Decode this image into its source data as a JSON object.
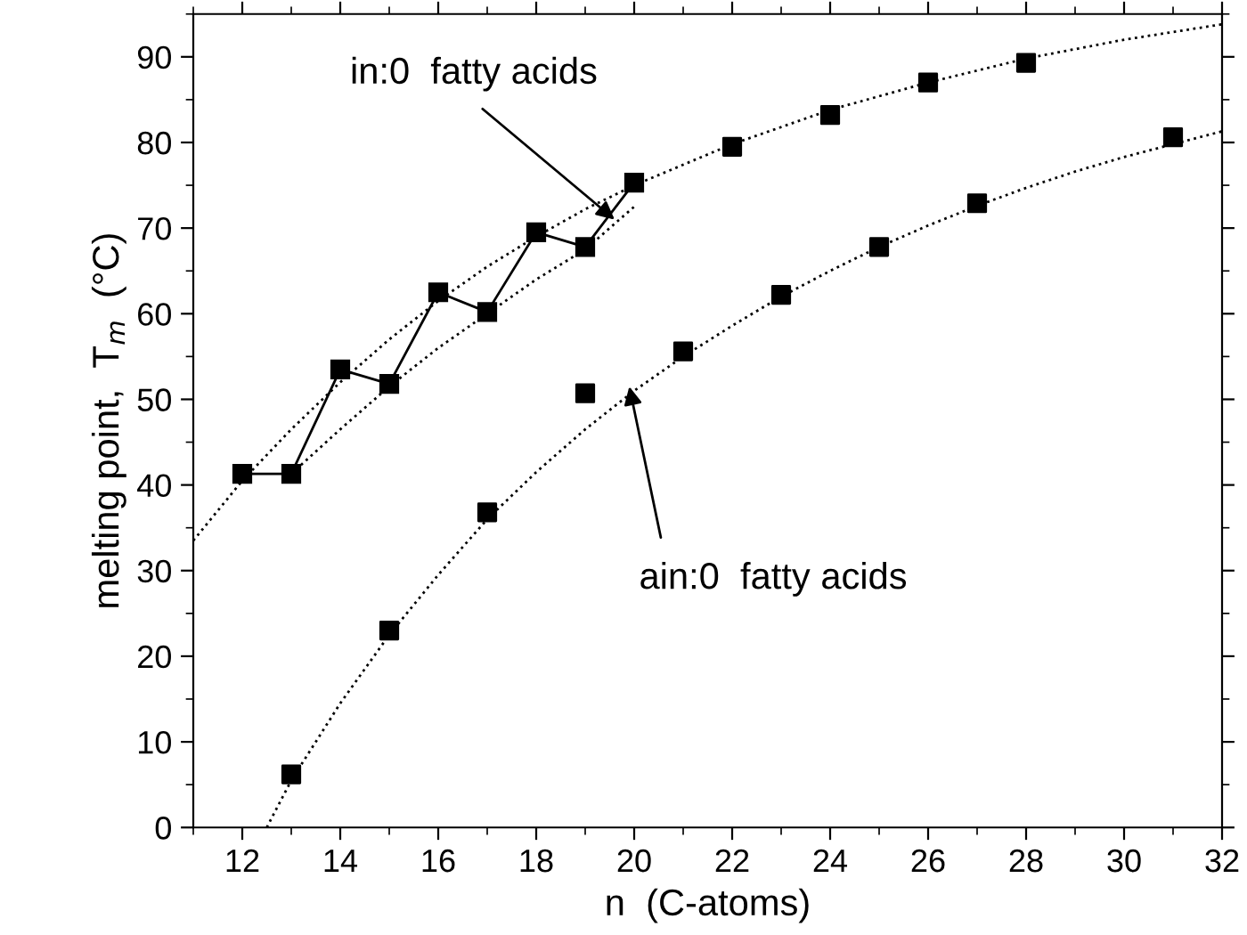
{
  "chart_data": {
    "type": "scatter",
    "xlabel": "n  (C-atoms)",
    "ylabel": "melting point,  T$_{m}$  (°C)",
    "xlim": [
      11,
      32
    ],
    "xticks": [
      12,
      14,
      16,
      18,
      20,
      22,
      24,
      26,
      28,
      30,
      32
    ],
    "ylim": [
      0,
      95
    ],
    "yticks": [
      0,
      10,
      20,
      30,
      40,
      50,
      60,
      70,
      80,
      90
    ],
    "grid": false,
    "series": [
      {
        "type": "line",
        "color": "#000000",
        "marker": "square",
        "line_style": "solid",
        "x": [
          12,
          13,
          14,
          15,
          16,
          17,
          18,
          19,
          20
        ],
        "values": [
          41.3,
          41.3,
          53.5,
          51.8,
          62.5,
          60.2,
          69.5,
          67.8,
          75.3
        ]
      },
      {
        "color": "#000000",
        "marker": "square",
        "x": [
          22,
          24,
          26,
          28
        ],
        "values": [
          79.5,
          83.2,
          87,
          89.3
        ]
      },
      {
        "color": "#000000",
        "marker": "square",
        "x": [
          13,
          15,
          17,
          19,
          21,
          23,
          25,
          27,
          31
        ],
        "values": [
          6.2,
          23,
          36.8,
          50.7,
          55.6,
          62.2,
          67.8,
          72.9,
          80.6
        ]
      },
      {
        "type": "line",
        "color": "#000000",
        "marker": "none",
        "line_style": "dotted",
        "x": [
          11,
          12,
          13,
          14,
          15,
          16,
          17,
          18,
          19,
          20,
          22,
          24,
          26,
          28,
          30,
          32
        ],
        "values": [
          33.5,
          40.5,
          46.5,
          52,
          57,
          61.5,
          65.5,
          69,
          72.2,
          75,
          79.8,
          83.8,
          87,
          89.8,
          92,
          93.8
        ]
      },
      {
        "type": "line",
        "color": "#000000",
        "marker": "none",
        "line_style": "dotted",
        "x": [
          13,
          14,
          15,
          16,
          17,
          18,
          19,
          20
        ],
        "values": [
          41.3,
          46.5,
          51.5,
          56,
          60,
          64,
          67.5,
          72.5
        ]
      },
      {
        "type": "line",
        "color": "#000000",
        "marker": "none",
        "line_style": "dotted",
        "x": [
          12.5,
          13,
          14,
          15,
          16,
          17,
          18,
          19,
          20,
          21,
          22,
          23,
          24,
          25,
          26,
          27,
          28,
          29,
          30,
          31,
          32
        ],
        "values": [
          0,
          5.5,
          14.5,
          22.5,
          29.5,
          36,
          41.5,
          46.5,
          51,
          55,
          58.6,
          62,
          65,
          67.8,
          70.3,
          72.6,
          74.7,
          76.6,
          78.3,
          79.8,
          81.3
        ]
      }
    ],
    "annotations": [
      {
        "text": "in:0  fatty acids",
        "x": 19.6,
        "y": 71
      },
      {
        "text": "ain:0  fatty acids",
        "x": 19.9,
        "y": 51.5
      }
    ]
  }
}
